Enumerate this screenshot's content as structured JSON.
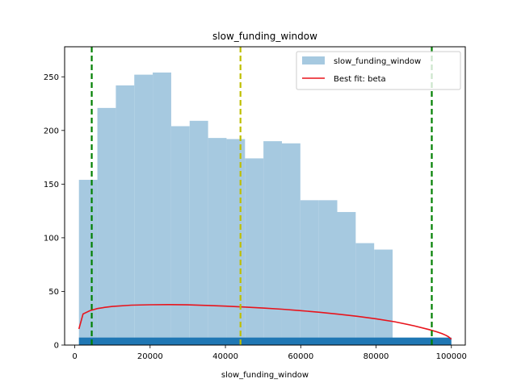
{
  "chart_data": {
    "type": "bar",
    "title": "slow_funding_window",
    "xlabel": "slow_funding_window",
    "ylabel": "",
    "xlim": [
      -2700,
      103700
    ],
    "ylim": [
      0,
      278
    ],
    "x_ticks": [
      0,
      20000,
      40000,
      60000,
      80000,
      100000
    ],
    "y_ticks": [
      0,
      50,
      100,
      150,
      200,
      250
    ],
    "grid": false,
    "legend_placement": "top-right",
    "histogram": {
      "name": "slow_funding_window",
      "color": "#a6c9e0",
      "bin_start": 1100,
      "bin_width": 4900,
      "values": [
        154,
        221,
        242,
        252,
        254,
        204,
        209,
        193,
        192,
        174,
        190,
        188,
        135,
        135,
        124,
        95,
        89
      ]
    },
    "rug": {
      "color": "#1f77b4",
      "x_start": 1100,
      "x_end": 100000,
      "height": 7
    },
    "best_fit": {
      "name": "Best fit: beta",
      "color": "#e8141c",
      "x": [
        1100,
        2200,
        4000,
        6000,
        8000,
        10000,
        15000,
        20000,
        25000,
        30000,
        35000,
        40000,
        45000,
        50000,
        55000,
        60000,
        65000,
        70000,
        75000,
        80000,
        85000,
        90000,
        94000,
        96000,
        97500,
        98500,
        99200,
        100000
      ],
      "y": [
        15,
        29,
        32,
        34,
        35.2,
        36,
        37.2,
        37.6,
        37.7,
        37.5,
        37,
        36.3,
        35.5,
        34.5,
        33.4,
        32.1,
        30.6,
        28.8,
        26.8,
        24.5,
        21.7,
        18,
        14.5,
        12.5,
        10.7,
        9.2,
        7.8,
        5.5
      ]
    },
    "reference_lines": [
      {
        "x": 4500,
        "color": "#008000"
      },
      {
        "x": 44000,
        "color": "#bfbf00"
      },
      {
        "x": 94800,
        "color": "#008000"
      }
    ]
  }
}
